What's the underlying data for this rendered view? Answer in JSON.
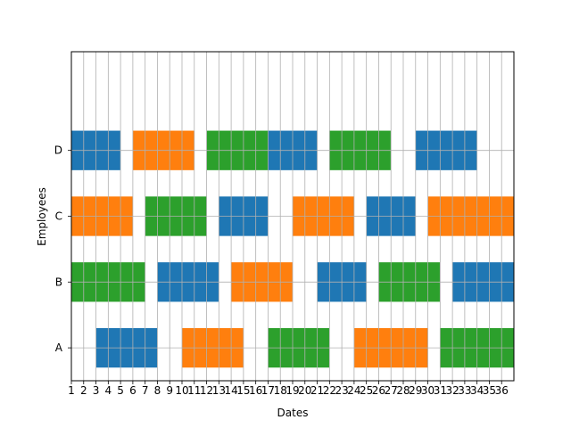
{
  "chart_data": {
    "type": "gantt",
    "xlabel": "Dates",
    "ylabel": "Employees",
    "xlim": [
      1,
      37
    ],
    "ylim": [
      -0.5,
      4.5
    ],
    "grid": true,
    "x_ticks": [
      1,
      2,
      3,
      4,
      5,
      6,
      7,
      8,
      9,
      10,
      11,
      12,
      13,
      14,
      15,
      16,
      17,
      18,
      19,
      20,
      21,
      22,
      23,
      24,
      25,
      26,
      27,
      28,
      29,
      30,
      31,
      32,
      33,
      34,
      35,
      36
    ],
    "employees": [
      "A",
      "B",
      "C",
      "D"
    ],
    "bar_height": 0.6,
    "colors": {
      "blue": "#1f77b4",
      "orange": "#ff7f0e",
      "green": "#2ca02c"
    },
    "tasks": [
      {
        "employee": "A",
        "start": 3,
        "end": 8,
        "color": "blue"
      },
      {
        "employee": "A",
        "start": 10,
        "end": 15,
        "color": "orange"
      },
      {
        "employee": "A",
        "start": 17,
        "end": 22,
        "color": "green"
      },
      {
        "employee": "A",
        "start": 24,
        "end": 30,
        "color": "orange"
      },
      {
        "employee": "A",
        "start": 31,
        "end": 37,
        "color": "green"
      },
      {
        "employee": "B",
        "start": 1,
        "end": 7,
        "color": "green"
      },
      {
        "employee": "B",
        "start": 8,
        "end": 13,
        "color": "blue"
      },
      {
        "employee": "B",
        "start": 14,
        "end": 19,
        "color": "orange"
      },
      {
        "employee": "B",
        "start": 21,
        "end": 25,
        "color": "blue"
      },
      {
        "employee": "B",
        "start": 26,
        "end": 31,
        "color": "green"
      },
      {
        "employee": "B",
        "start": 32,
        "end": 37,
        "color": "blue"
      },
      {
        "employee": "C",
        "start": 1,
        "end": 6,
        "color": "orange"
      },
      {
        "employee": "C",
        "start": 7,
        "end": 12,
        "color": "green"
      },
      {
        "employee": "C",
        "start": 13,
        "end": 17,
        "color": "blue"
      },
      {
        "employee": "C",
        "start": 19,
        "end": 24,
        "color": "orange"
      },
      {
        "employee": "C",
        "start": 25,
        "end": 29,
        "color": "blue"
      },
      {
        "employee": "C",
        "start": 30,
        "end": 37,
        "color": "orange"
      },
      {
        "employee": "D",
        "start": 1,
        "end": 5,
        "color": "blue"
      },
      {
        "employee": "D",
        "start": 6,
        "end": 11,
        "color": "orange"
      },
      {
        "employee": "D",
        "start": 12,
        "end": 17,
        "color": "green"
      },
      {
        "employee": "D",
        "start": 17,
        "end": 21,
        "color": "blue"
      },
      {
        "employee": "D",
        "start": 22,
        "end": 27,
        "color": "green"
      },
      {
        "employee": "D",
        "start": 29,
        "end": 34,
        "color": "blue"
      }
    ]
  }
}
